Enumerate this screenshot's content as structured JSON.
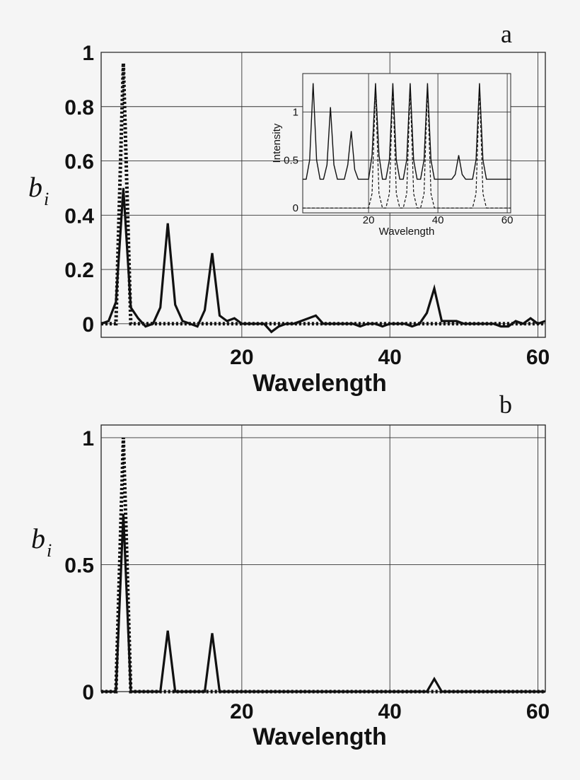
{
  "chart_data": [
    {
      "panel": "a",
      "type": "line",
      "xlabel": "Wavelength",
      "ylabel": "b",
      "ylabel_sub": "i",
      "xlim": [
        1,
        61
      ],
      "ylim": [
        -0.05,
        1.0
      ],
      "xticks": [
        20,
        40,
        60
      ],
      "yticks": [
        0,
        0.2,
        0.4,
        0.6,
        0.8,
        1
      ],
      "ytick_labels": [
        "0",
        "0.2",
        "0.4",
        "0.6",
        "0.8",
        "1"
      ],
      "grid": true,
      "series": [
        {
          "style": "solid",
          "x": [
            1,
            2,
            3,
            4,
            5,
            6,
            7,
            8,
            9,
            10,
            11,
            12,
            13,
            14,
            15,
            16,
            17,
            18,
            19,
            20,
            21,
            22,
            23,
            24,
            25,
            26,
            27,
            28,
            29,
            30,
            31,
            32,
            33,
            34,
            35,
            36,
            37,
            38,
            39,
            40,
            41,
            42,
            43,
            44,
            45,
            46,
            47,
            48,
            49,
            50,
            51,
            52,
            53,
            54,
            55,
            56,
            57,
            58,
            59,
            60,
            61
          ],
          "values": [
            0.0,
            0.01,
            0.08,
            0.5,
            0.06,
            0.02,
            -0.01,
            0.0,
            0.06,
            0.37,
            0.07,
            0.01,
            0.0,
            -0.01,
            0.05,
            0.26,
            0.03,
            0.01,
            0.02,
            0.0,
            0.0,
            0.0,
            0.0,
            -0.03,
            -0.01,
            0.0,
            0.0,
            0.01,
            0.02,
            0.03,
            0.0,
            0.0,
            0.0,
            0.0,
            0.0,
            -0.01,
            0.0,
            0.0,
            -0.01,
            0.0,
            0.0,
            0.0,
            -0.01,
            0.0,
            0.04,
            0.13,
            0.01,
            0.01,
            0.01,
            0.0,
            0.0,
            0.0,
            0.0,
            0.0,
            -0.01,
            -0.01,
            0.01,
            0.0,
            0.02,
            0.0,
            0.01
          ]
        },
        {
          "style": "dotted",
          "x": [
            1,
            2,
            3,
            4,
            5,
            6,
            7,
            10,
            20,
            30,
            40,
            46,
            50,
            60,
            61
          ],
          "values": [
            0,
            0,
            0,
            0.96,
            0,
            0,
            0,
            0,
            0,
            0,
            0,
            0,
            0,
            0,
            0
          ]
        }
      ],
      "inset": {
        "xlabel": "Wavelength",
        "ylabel": "Intensity",
        "xlim": [
          1,
          61
        ],
        "ylim": [
          -0.05,
          1.4
        ],
        "xticks": [
          20,
          40,
          60
        ],
        "yticks": [
          0,
          0.5,
          1
        ],
        "ytick_labels": [
          "0",
          "0.5",
          "1"
        ],
        "grid": true,
        "series": [
          {
            "style": "solid",
            "x": [
              1,
              2,
              3,
              4,
              5,
              6,
              7,
              8,
              9,
              10,
              11,
              12,
              13,
              14,
              15,
              16,
              17,
              18,
              19,
              20,
              21,
              22,
              23,
              24,
              25,
              26,
              27,
              28,
              29,
              30,
              31,
              32,
              33,
              34,
              35,
              36,
              37,
              38,
              39,
              40,
              41,
              42,
              43,
              44,
              45,
              46,
              47,
              48,
              49,
              50,
              51,
              52,
              53,
              54,
              55,
              56,
              57,
              58,
              59,
              60,
              61
            ],
            "values": [
              0.3,
              0.3,
              0.5,
              1.3,
              0.5,
              0.3,
              0.3,
              0.45,
              1.05,
              0.45,
              0.3,
              0.3,
              0.3,
              0.45,
              0.8,
              0.4,
              0.3,
              0.3,
              0.3,
              0.3,
              0.55,
              1.3,
              0.55,
              0.3,
              0.3,
              0.5,
              1.3,
              0.5,
              0.3,
              0.3,
              0.5,
              1.3,
              0.5,
              0.3,
              0.3,
              0.5,
              1.3,
              0.5,
              0.3,
              0.3,
              0.3,
              0.3,
              0.3,
              0.3,
              0.35,
              0.55,
              0.35,
              0.3,
              0.3,
              0.3,
              0.5,
              1.3,
              0.5,
              0.3,
              0.3,
              0.3,
              0.3,
              0.3,
              0.3,
              0.3,
              0.3
            ]
          },
          {
            "style": "dashed",
            "x": [
              1,
              5,
              10,
              15,
              19,
              20,
              21,
              22,
              23,
              24,
              25,
              26,
              27,
              28,
              29,
              30,
              31,
              32,
              33,
              34,
              35,
              36,
              37,
              38,
              39,
              40,
              41,
              42,
              43,
              44,
              45,
              46,
              47,
              48,
              49,
              50,
              51,
              52,
              53,
              54,
              55,
              56,
              57,
              58,
              59,
              60,
              61
            ],
            "values": [
              0,
              0,
              0,
              0,
              0,
              0,
              0.15,
              1.25,
              0.15,
              0,
              0,
              0.15,
              1.25,
              0.15,
              0,
              0,
              0.15,
              1.25,
              0.15,
              0,
              0,
              0.15,
              1.25,
              0.15,
              0,
              0,
              0,
              0,
              0,
              0,
              0,
              0,
              0,
              0,
              0,
              0,
              0.15,
              1.25,
              0.15,
              0,
              0,
              0,
              0,
              0,
              0,
              0,
              0
            ]
          }
        ]
      }
    },
    {
      "panel": "b",
      "type": "line",
      "xlabel": "Wavelength",
      "ylabel": "b",
      "ylabel_sub": "i",
      "xlim": [
        1,
        61
      ],
      "ylim": [
        0,
        1.05
      ],
      "xticks": [
        20,
        40,
        60
      ],
      "yticks": [
        0,
        0.5,
        1
      ],
      "ytick_labels": [
        "0",
        "0.5",
        "1"
      ],
      "grid": true,
      "series": [
        {
          "style": "solid",
          "x": [
            1,
            2,
            3,
            4,
            5,
            6,
            7,
            8,
            9,
            10,
            11,
            12,
            13,
            14,
            15,
            16,
            17,
            18,
            19,
            20,
            21,
            22,
            23,
            24,
            25,
            26,
            27,
            28,
            29,
            30,
            31,
            32,
            33,
            34,
            35,
            36,
            37,
            38,
            39,
            40,
            41,
            42,
            43,
            44,
            45,
            46,
            47,
            48,
            49,
            50,
            51,
            52,
            53,
            54,
            55,
            56,
            57,
            58,
            59,
            60,
            61
          ],
          "values": [
            0,
            0,
            0,
            0.7,
            0,
            0,
            0,
            0,
            0,
            0.24,
            0,
            0,
            0,
            0,
            0,
            0.23,
            0,
            0,
            0,
            0,
            0,
            0,
            0,
            0,
            0,
            0,
            0,
            0,
            0,
            0,
            0,
            0,
            0,
            0,
            0,
            0,
            0,
            0,
            0,
            0,
            0,
            0,
            0,
            0,
            0,
            0.05,
            0,
            0,
            0,
            0,
            0,
            0,
            0,
            0,
            0,
            0,
            0,
            0,
            0,
            0,
            0
          ]
        },
        {
          "style": "dotted",
          "x": [
            1,
            2,
            3,
            4,
            5,
            6,
            7,
            10,
            20,
            30,
            40,
            46,
            50,
            60,
            61
          ],
          "values": [
            0,
            0,
            0,
            1.0,
            0,
            0,
            0,
            0,
            0,
            0,
            0,
            0,
            0,
            0,
            0
          ]
        }
      ]
    }
  ]
}
